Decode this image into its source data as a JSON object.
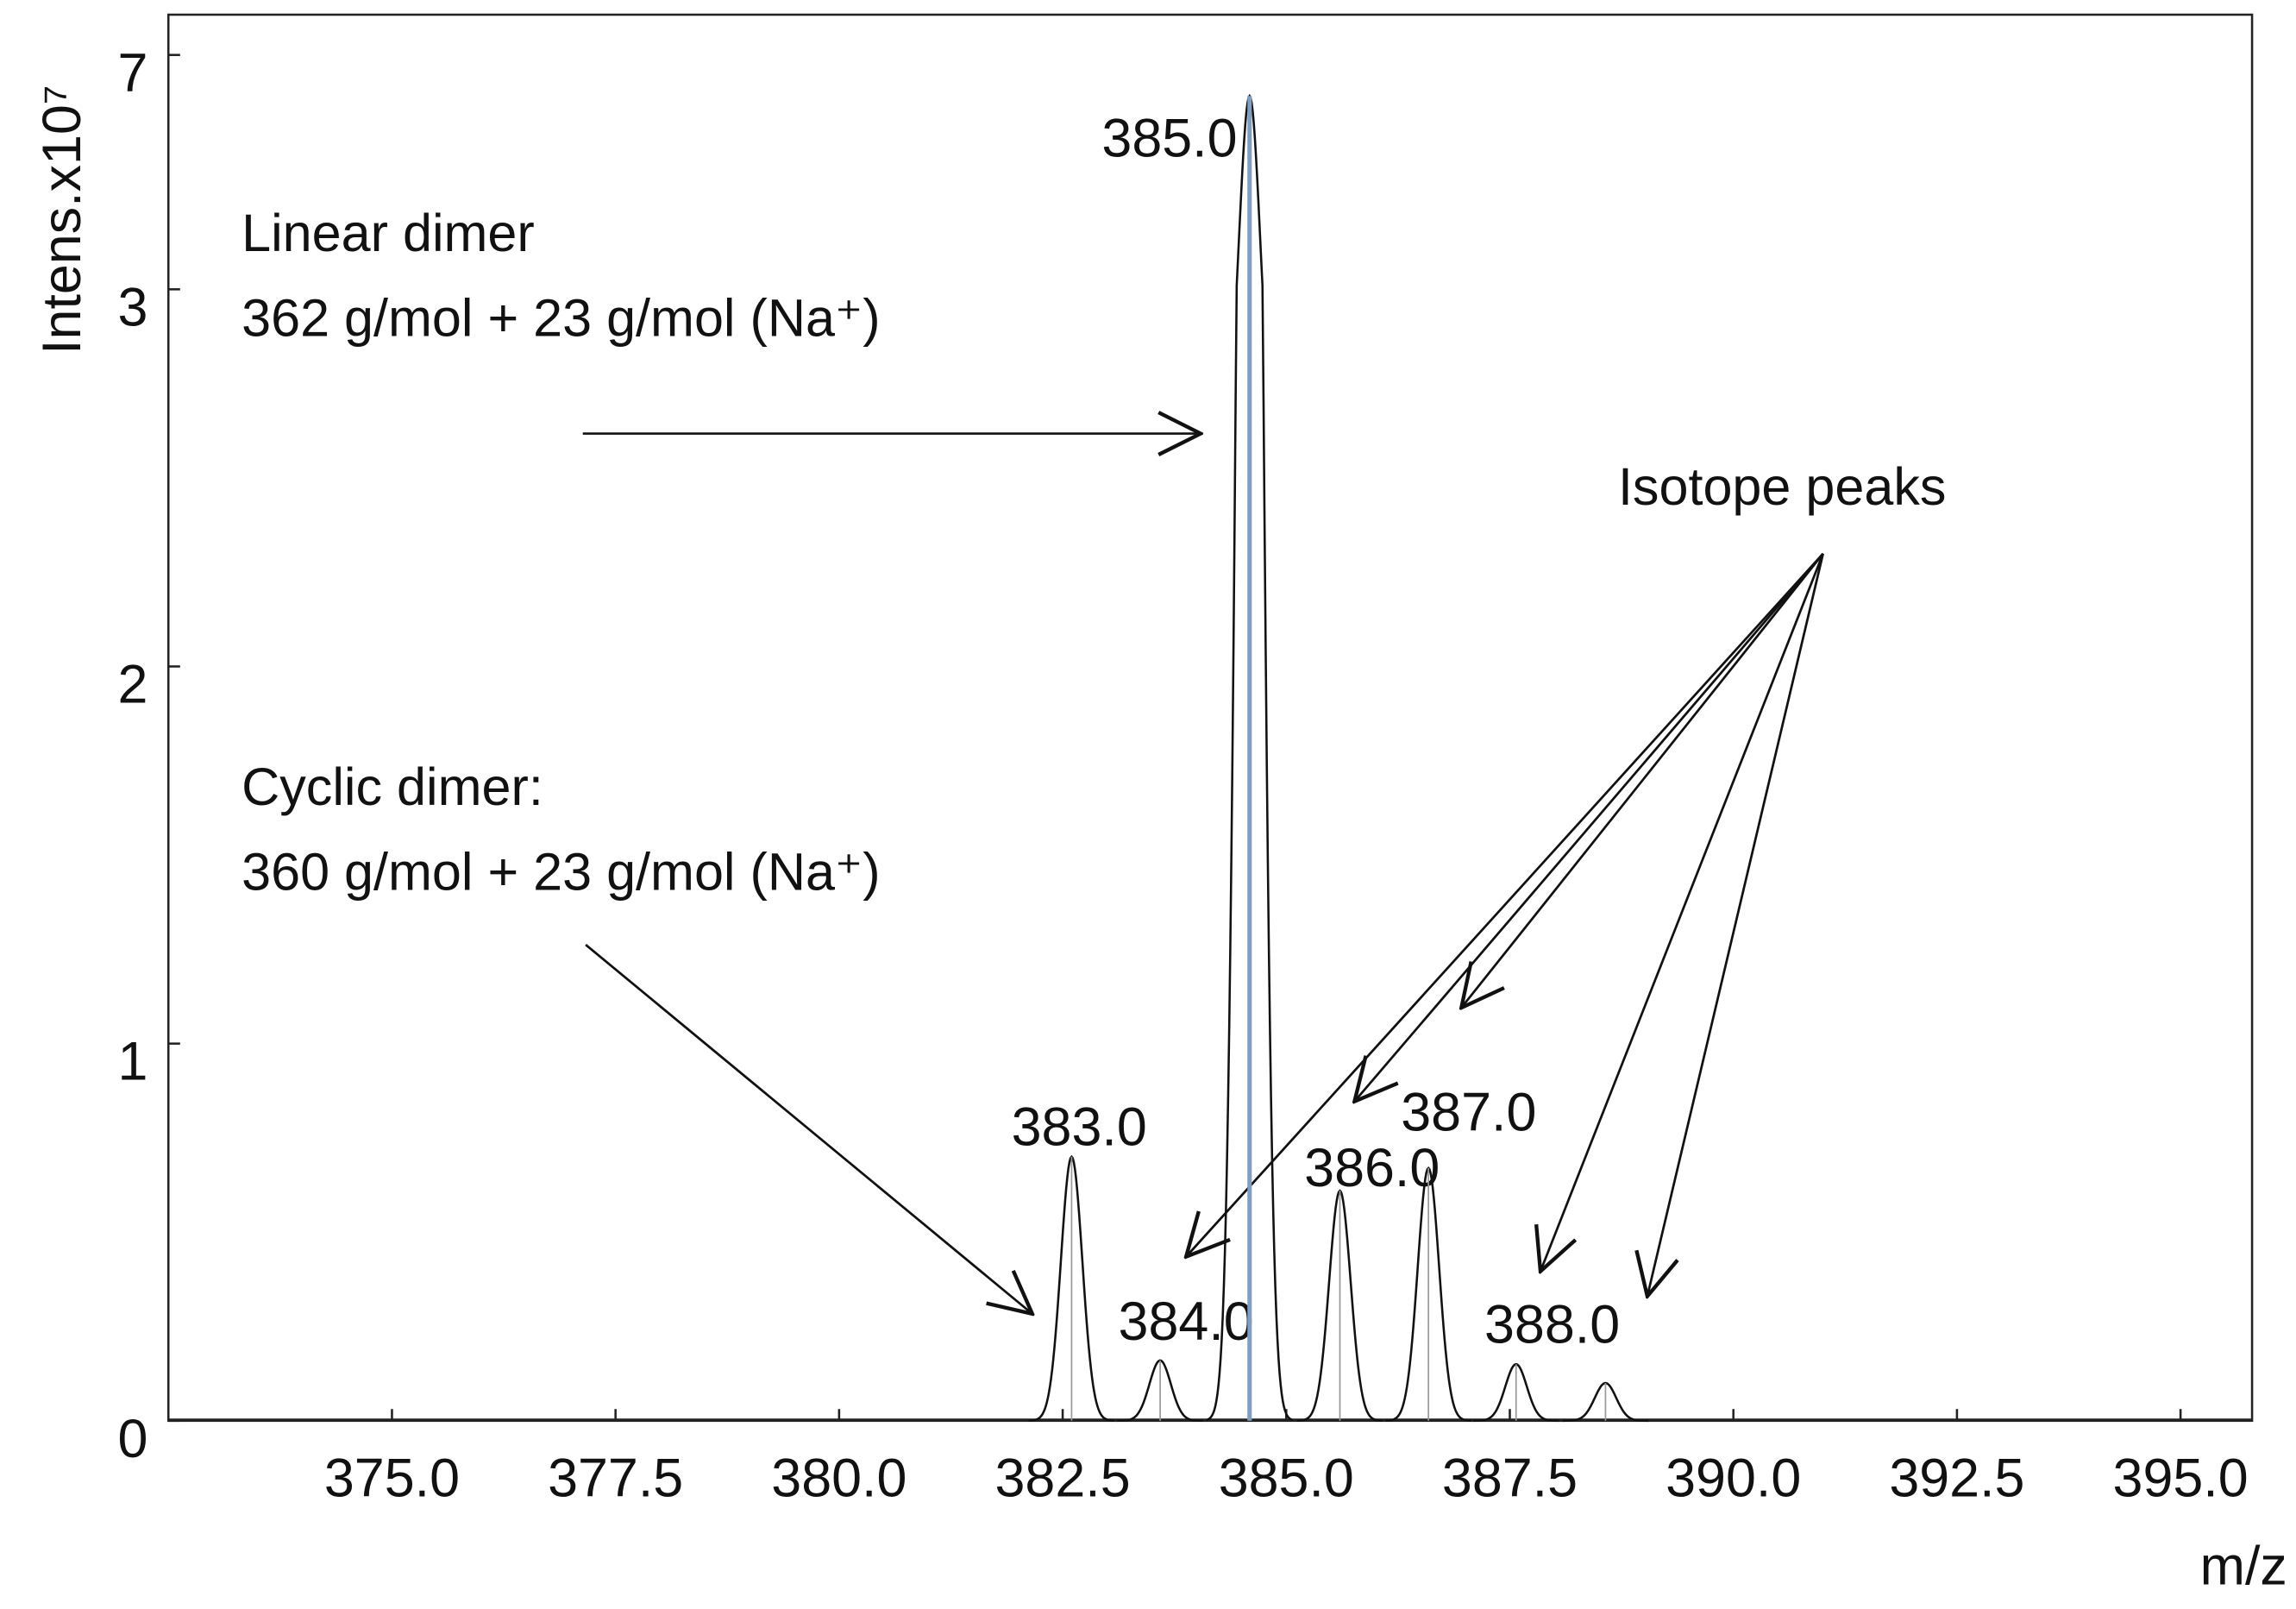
{
  "chart_data": {
    "type": "spectrum",
    "y_label": "Intens.x10⁷",
    "x_label": "m/z",
    "xlim": [
      372.5,
      395.8
    ],
    "xticks": [
      {
        "value": 375,
        "label": "375.0"
      },
      {
        "value": 377.5,
        "label": "377.5"
      },
      {
        "value": 380,
        "label": "380.0"
      },
      {
        "value": 382.5,
        "label": "382.5"
      },
      {
        "value": 385,
        "label": "385.0"
      },
      {
        "value": 387.5,
        "label": "387.5"
      },
      {
        "value": 390,
        "label": "390.0"
      },
      {
        "value": 392.5,
        "label": "392.5"
      },
      {
        "value": 395,
        "label": "395.0"
      }
    ],
    "ylim": [
      0,
      7
    ],
    "yticks": [
      0,
      1,
      2,
      3,
      7
    ],
    "axis_break": true,
    "color": "#111111",
    "series": [
      {
        "x": [
          382.6,
          383.59,
          384.59,
          385.6,
          386.59,
          387.57,
          388.57
        ],
        "values": [
          0.7,
          0.16,
          6.3,
          0.61,
          0.67,
          0.15,
          0.1
        ],
        "peak_labels": [
          "383.0",
          "384.0",
          "385.0",
          "386.0",
          "387.0",
          "388.0",
          null
        ]
      }
    ],
    "annotations": {
      "linear": [
        "Linear dimer",
        "362 g/mol + 23 g/mol (Na⁺)"
      ],
      "cyclic": [
        "Cyclic dimer:",
        "360 g/mol + 23 g/mol (Na⁺)"
      ],
      "isotope": "Isotope peaks"
    }
  }
}
